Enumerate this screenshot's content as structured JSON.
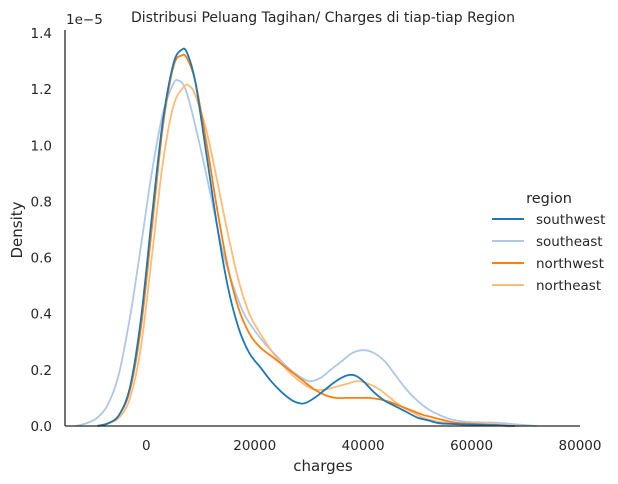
{
  "chart_data": {
    "type": "line",
    "title": "Distribusi Peluang Tagihan/ Charges di tiap-tiap Region",
    "xlabel": "charges",
    "ylabel": "Density",
    "y_scale_label": "1e−5",
    "xlim": [
      -15000,
      80000
    ],
    "ylim": [
      0,
      1.4
    ],
    "x_ticks": [
      0,
      20000,
      40000,
      60000,
      80000
    ],
    "y_ticks": [
      0.0,
      0.2,
      0.4,
      0.6,
      0.8,
      1.0,
      1.2,
      1.4
    ],
    "grid": false,
    "legend_title": "region",
    "legend_position": "right",
    "series": [
      {
        "name": "southwest",
        "color": "#1f77b4",
        "x": [
          -9000,
          -7000,
          -5000,
          -3000,
          -1000,
          1000,
          3000,
          5000,
          6500,
          7500,
          9000,
          11000,
          13000,
          15000,
          17000,
          19000,
          21000,
          23000,
          25000,
          27000,
          29000,
          31000,
          33000,
          35000,
          37000,
          38500,
          40000,
          42000,
          44000,
          46000,
          48000,
          50000,
          52000,
          54000,
          56000,
          58000,
          60000,
          62000,
          64000,
          66000,
          68000
        ],
        "y": [
          0.0,
          0.01,
          0.04,
          0.14,
          0.38,
          0.74,
          1.08,
          1.29,
          1.34,
          1.33,
          1.23,
          0.98,
          0.72,
          0.5,
          0.35,
          0.26,
          0.21,
          0.16,
          0.12,
          0.09,
          0.08,
          0.1,
          0.13,
          0.16,
          0.18,
          0.18,
          0.16,
          0.12,
          0.09,
          0.07,
          0.05,
          0.03,
          0.02,
          0.01,
          0.008,
          0.006,
          0.005,
          0.004,
          0.003,
          0.001,
          0.0
        ]
      },
      {
        "name": "southeast",
        "color": "#aec7e8",
        "x": [
          -13000,
          -11000,
          -9000,
          -7000,
          -5000,
          -3000,
          -1000,
          1000,
          3000,
          5000,
          6000,
          7000,
          8000,
          10000,
          12000,
          14000,
          16000,
          18000,
          20000,
          22000,
          24000,
          26000,
          28000,
          30000,
          32000,
          34000,
          36000,
          38000,
          40000,
          42000,
          44000,
          46000,
          48000,
          50000,
          52000,
          54000,
          56000,
          58000,
          60000,
          62000,
          64000,
          66000,
          68000,
          70000,
          72000
        ],
        "y": [
          0.0,
          0.01,
          0.03,
          0.08,
          0.19,
          0.39,
          0.64,
          0.9,
          1.11,
          1.22,
          1.23,
          1.21,
          1.15,
          0.99,
          0.81,
          0.63,
          0.5,
          0.4,
          0.34,
          0.29,
          0.25,
          0.21,
          0.18,
          0.16,
          0.17,
          0.2,
          0.23,
          0.26,
          0.27,
          0.26,
          0.23,
          0.18,
          0.13,
          0.09,
          0.06,
          0.04,
          0.025,
          0.017,
          0.014,
          0.013,
          0.012,
          0.01,
          0.006,
          0.003,
          0.0
        ]
      },
      {
        "name": "northwest",
        "color": "#ff7f0e",
        "x": [
          -9000,
          -7000,
          -5000,
          -3000,
          -1000,
          1000,
          3000,
          5000,
          6500,
          7500,
          9000,
          11000,
          13000,
          15000,
          17000,
          19000,
          21000,
          23000,
          25000,
          27000,
          29000,
          31000,
          33000,
          35000,
          37000,
          39000,
          41000,
          43000,
          45000,
          47000,
          49000,
          51000,
          53000,
          55000,
          57000,
          59000,
          61000,
          63000,
          65000,
          67000
        ],
        "y": [
          0.0,
          0.01,
          0.04,
          0.13,
          0.35,
          0.7,
          1.06,
          1.28,
          1.32,
          1.31,
          1.23,
          1.02,
          0.78,
          0.57,
          0.42,
          0.33,
          0.28,
          0.25,
          0.22,
          0.19,
          0.16,
          0.13,
          0.11,
          0.1,
          0.1,
          0.1,
          0.1,
          0.095,
          0.085,
          0.07,
          0.055,
          0.04,
          0.03,
          0.02,
          0.012,
          0.009,
          0.007,
          0.005,
          0.003,
          0.0
        ]
      },
      {
        "name": "northeast",
        "color": "#ffbb78",
        "x": [
          -9000,
          -7000,
          -5000,
          -3000,
          -1000,
          1000,
          3000,
          5000,
          7000,
          8000,
          9000,
          11000,
          13000,
          15000,
          17000,
          19000,
          21000,
          23000,
          25000,
          27000,
          29000,
          31000,
          33000,
          35000,
          37000,
          39000,
          41000,
          43000,
          45000,
          47000,
          49000,
          51000,
          53000,
          55000,
          57000,
          59000,
          61000,
          63000,
          65000,
          67000,
          69000
        ],
        "y": [
          0.0,
          0.01,
          0.03,
          0.1,
          0.28,
          0.6,
          0.93,
          1.14,
          1.21,
          1.21,
          1.18,
          1.06,
          0.88,
          0.69,
          0.52,
          0.4,
          0.33,
          0.27,
          0.22,
          0.18,
          0.15,
          0.13,
          0.13,
          0.14,
          0.15,
          0.16,
          0.15,
          0.13,
          0.1,
          0.07,
          0.05,
          0.03,
          0.018,
          0.012,
          0.009,
          0.008,
          0.008,
          0.007,
          0.005,
          0.002,
          0.0
        ]
      }
    ]
  }
}
